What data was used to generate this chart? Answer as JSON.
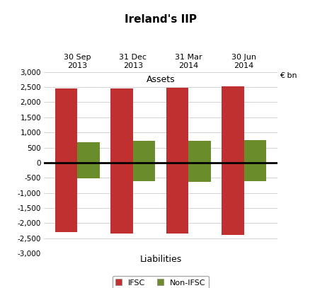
{
  "title": "Ireland's IIP",
  "categories": [
    "30 Sep\n2013",
    "31 Dec\n2013",
    "31 Mar\n2014",
    "30 Jun\n2014"
  ],
  "ifsc_assets": [
    2450,
    2450,
    2480,
    2530
  ],
  "ifsc_liabilities": [
    -2300,
    -2330,
    -2330,
    -2380
  ],
  "nonifsc_assets": [
    680,
    720,
    730,
    750
  ],
  "nonifsc_liabilities": [
    -520,
    -600,
    -640,
    -600
  ],
  "ylim": [
    -3000,
    3000
  ],
  "yticks": [
    -3000,
    -2500,
    -2000,
    -1500,
    -1000,
    -500,
    0,
    500,
    1000,
    1500,
    2000,
    2500,
    3000
  ],
  "ifsc_color": "#c03030",
  "nonifsc_color": "#6b8c2a",
  "assets_label": "Assets",
  "liabilities_label": "Liabilities",
  "ylabel": "€ bn",
  "legend_labels": [
    "IFSC",
    "Non-IFSC"
  ],
  "bar_width": 0.4,
  "figsize": [
    4.45,
    4.07
  ],
  "dpi": 100
}
